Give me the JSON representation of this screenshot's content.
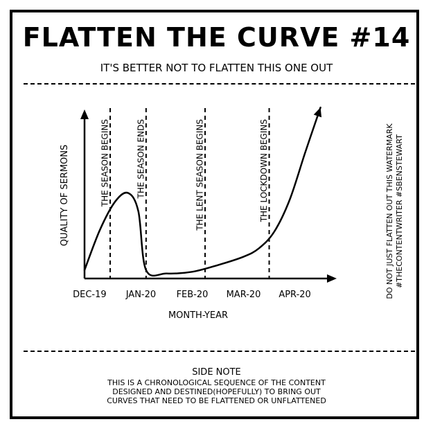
{
  "page": {
    "title": "FLATTEN THE CURVE #14",
    "subtitle": "IT'S BETTER NOT TO FLATTEN THIS ONE OUT"
  },
  "side_note": {
    "heading": "SIDE NOTE",
    "lines": [
      "THIS IS A CHRONOLOGICAL SEQUENCE OF THE CONTENT",
      "DESIGNED AND DESTINED(HOPEFULLY) TO BRING OUT",
      "CURVES THAT NEED TO BE FLATTENED OR UNFLATTENED"
    ]
  },
  "watermark": {
    "lines": [
      "DO NOT JUST FLATTEN OUT THIS WATERMARK",
      "#THECONTENTWRITER #SBENSTEWART"
    ]
  },
  "chart_data": {
    "type": "line",
    "title": "",
    "xlabel": "MONTH-YEAR",
    "ylabel": "QUALITY OF SERMONS",
    "x_ticks": [
      "DEC-19",
      "JAN-20",
      "FEB-20",
      "MAR-20",
      "APR-20"
    ],
    "x_range": [
      -0.1,
      4.6
    ],
    "y_range": [
      0,
      10
    ],
    "grid": false,
    "series": [
      {
        "values": [
          [
            -0.1,
            0.5
          ],
          [
            0.2,
            2.9
          ],
          [
            0.5,
            4.6
          ],
          [
            0.75,
            5.1
          ],
          [
            0.95,
            4.0
          ],
          [
            1.1,
            0.5
          ],
          [
            1.5,
            0.3
          ],
          [
            2.0,
            0.4
          ],
          [
            2.5,
            0.8
          ],
          [
            3.0,
            1.3
          ],
          [
            3.3,
            1.8
          ],
          [
            3.6,
            2.8
          ],
          [
            3.9,
            4.7
          ],
          [
            4.2,
            7.5
          ],
          [
            4.5,
            10.2
          ]
        ]
      }
    ],
    "annotations": [
      {
        "label": "THE SEASON BEGINS",
        "x": 0.4
      },
      {
        "label": "THE SEASON ENDS",
        "x": 1.1
      },
      {
        "label": "THE LENT SEASON BEGINS",
        "x": 2.25
      },
      {
        "label": "THE LOCKDOWN BEGINS",
        "x": 3.5
      }
    ]
  }
}
